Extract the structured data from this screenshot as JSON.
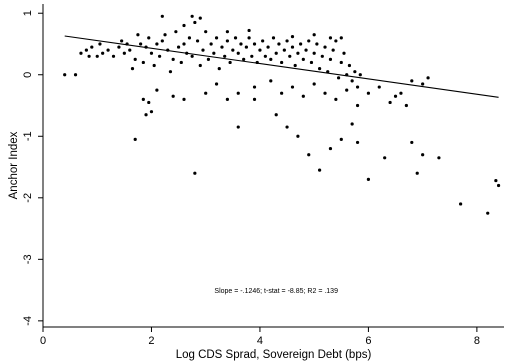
{
  "chart_data": {
    "type": "scatter",
    "xlabel": "Log CDS Sprad, Sovereign Debt (bps)",
    "ylabel": "Anchor Index",
    "xlim": [
      0,
      8.5
    ],
    "ylim": [
      -4.1,
      1.15
    ],
    "x_ticks": [
      0,
      2,
      4,
      6,
      8
    ],
    "y_ticks": [
      1,
      0,
      -1,
      -2,
      -3,
      -4
    ],
    "grid": false,
    "legend": "none",
    "annotation": "Slope = -.1246; t-stat = -8.85; R2 = .139",
    "fit_line": {
      "slope": -0.1246,
      "intercept": 0.68,
      "x_range": [
        0.4,
        8.4
      ]
    },
    "points": [
      [
        0.4,
        0.0
      ],
      [
        0.6,
        0.0
      ],
      [
        0.7,
        0.35
      ],
      [
        0.8,
        0.4
      ],
      [
        0.85,
        0.3
      ],
      [
        0.9,
        0.45
      ],
      [
        1.0,
        0.3
      ],
      [
        1.05,
        0.5
      ],
      [
        1.1,
        0.35
      ],
      [
        1.2,
        0.4
      ],
      [
        1.3,
        0.3
      ],
      [
        1.4,
        0.45
      ],
      [
        1.45,
        0.55
      ],
      [
        1.5,
        0.35
      ],
      [
        1.55,
        0.5
      ],
      [
        1.6,
        0.4
      ],
      [
        1.65,
        0.1
      ],
      [
        1.7,
        0.25
      ],
      [
        1.75,
        0.65
      ],
      [
        1.8,
        0.5
      ],
      [
        1.85,
        0.2
      ],
      [
        1.9,
        0.45
      ],
      [
        1.95,
        0.6
      ],
      [
        2.0,
        0.35
      ],
      [
        2.05,
        0.15
      ],
      [
        2.1,
        0.5
      ],
      [
        2.15,
        0.3
      ],
      [
        2.2,
        0.55
      ],
      [
        2.25,
        0.65
      ],
      [
        2.3,
        0.4
      ],
      [
        2.35,
        0.05
      ],
      [
        2.4,
        0.25
      ],
      [
        2.45,
        0.7
      ],
      [
        2.5,
        0.45
      ],
      [
        2.55,
        0.2
      ],
      [
        2.6,
        0.5
      ],
      [
        2.65,
        0.35
      ],
      [
        2.7,
        0.6
      ],
      [
        2.75,
        0.3
      ],
      [
        2.8,
        0.85
      ],
      [
        2.85,
        0.55
      ],
      [
        2.9,
        0.15
      ],
      [
        2.95,
        0.4
      ],
      [
        3.0,
        0.7
      ],
      [
        3.05,
        0.25
      ],
      [
        3.1,
        0.5
      ],
      [
        3.15,
        0.35
      ],
      [
        3.2,
        0.6
      ],
      [
        3.25,
        0.1
      ],
      [
        3.3,
        0.45
      ],
      [
        3.35,
        0.3
      ],
      [
        3.4,
        0.55
      ],
      [
        3.45,
        0.2
      ],
      [
        3.5,
        0.4
      ],
      [
        3.55,
        0.6
      ],
      [
        3.6,
        0.35
      ],
      [
        3.65,
        0.5
      ],
      [
        3.7,
        0.25
      ],
      [
        3.75,
        0.45
      ],
      [
        3.8,
        0.6
      ],
      [
        3.85,
        0.3
      ],
      [
        3.9,
        0.5
      ],
      [
        3.95,
        0.2
      ],
      [
        4.0,
        0.4
      ],
      [
        4.05,
        0.55
      ],
      [
        4.1,
        0.3
      ],
      [
        4.15,
        0.45
      ],
      [
        4.2,
        0.25
      ],
      [
        4.25,
        0.6
      ],
      [
        4.3,
        0.35
      ],
      [
        4.35,
        0.5
      ],
      [
        4.4,
        0.2
      ],
      [
        4.45,
        0.4
      ],
      [
        4.5,
        0.55
      ],
      [
        4.55,
        0.3
      ],
      [
        4.6,
        0.45
      ],
      [
        4.65,
        0.15
      ],
      [
        4.7,
        0.35
      ],
      [
        4.75,
        0.5
      ],
      [
        4.8,
        0.25
      ],
      [
        4.85,
        0.4
      ],
      [
        4.9,
        0.55
      ],
      [
        4.95,
        0.2
      ],
      [
        5.0,
        0.35
      ],
      [
        5.05,
        0.5
      ],
      [
        5.1,
        0.1
      ],
      [
        5.15,
        0.3
      ],
      [
        5.2,
        0.45
      ],
      [
        5.25,
        0.05
      ],
      [
        5.3,
        0.25
      ],
      [
        5.35,
        0.4
      ],
      [
        5.4,
        0.55
      ],
      [
        5.45,
        -0.05
      ],
      [
        5.5,
        0.2
      ],
      [
        5.55,
        0.35
      ],
      [
        5.6,
        0.0
      ],
      [
        5.65,
        0.15
      ],
      [
        5.7,
        -0.1
      ],
      [
        5.75,
        0.05
      ],
      [
        5.8,
        -0.2
      ],
      [
        5.85,
        0.0
      ],
      [
        2.2,
        0.95
      ],
      [
        2.6,
        0.8
      ],
      [
        2.75,
        0.95
      ],
      [
        2.9,
        0.92
      ],
      [
        3.4,
        0.7
      ],
      [
        3.8,
        0.72
      ],
      [
        4.6,
        0.62
      ],
      [
        5.0,
        0.65
      ],
      [
        5.3,
        0.6
      ],
      [
        5.5,
        0.6
      ],
      [
        2.1,
        -0.25
      ],
      [
        2.4,
        -0.35
      ],
      [
        2.6,
        -0.4
      ],
      [
        3.0,
        -0.3
      ],
      [
        3.2,
        -0.15
      ],
      [
        3.4,
        -0.4
      ],
      [
        3.6,
        -0.3
      ],
      [
        3.9,
        -0.2
      ],
      [
        4.2,
        -0.1
      ],
      [
        4.4,
        -0.3
      ],
      [
        4.6,
        -0.2
      ],
      [
        4.8,
        -0.35
      ],
      [
        5.0,
        -0.15
      ],
      [
        5.2,
        -0.3
      ],
      [
        5.4,
        -0.4
      ],
      [
        5.6,
        -0.25
      ],
      [
        5.8,
        -0.5
      ],
      [
        6.0,
        -0.3
      ],
      [
        6.2,
        -0.2
      ],
      [
        6.4,
        -0.45
      ],
      [
        6.6,
        -0.3
      ],
      [
        6.8,
        -0.1
      ],
      [
        7.0,
        -0.15
      ],
      [
        7.1,
        -0.05
      ],
      [
        6.5,
        -0.35
      ],
      [
        6.7,
        -0.5
      ],
      [
        1.7,
        -1.05
      ],
      [
        1.85,
        -0.4
      ],
      [
        1.95,
        -0.45
      ],
      [
        2.0,
        -0.6
      ],
      [
        1.9,
        -0.65
      ],
      [
        3.6,
        -0.85
      ],
      [
        3.9,
        -0.4
      ],
      [
        4.3,
        -0.65
      ],
      [
        4.5,
        -0.85
      ],
      [
        4.7,
        -1.0
      ],
      [
        4.9,
        -1.3
      ],
      [
        5.1,
        -1.55
      ],
      [
        5.3,
        -1.2
      ],
      [
        5.5,
        -1.05
      ],
      [
        5.7,
        -0.8
      ],
      [
        5.8,
        -1.1
      ],
      [
        6.0,
        -1.7
      ],
      [
        6.3,
        -1.35
      ],
      [
        6.8,
        -1.1
      ],
      [
        6.9,
        -1.6
      ],
      [
        7.0,
        -1.3
      ],
      [
        7.3,
        -1.35
      ],
      [
        2.8,
        -1.6
      ],
      [
        7.7,
        -2.1
      ],
      [
        8.2,
        -2.25
      ],
      [
        8.35,
        -1.72
      ],
      [
        8.4,
        -1.8
      ]
    ]
  }
}
